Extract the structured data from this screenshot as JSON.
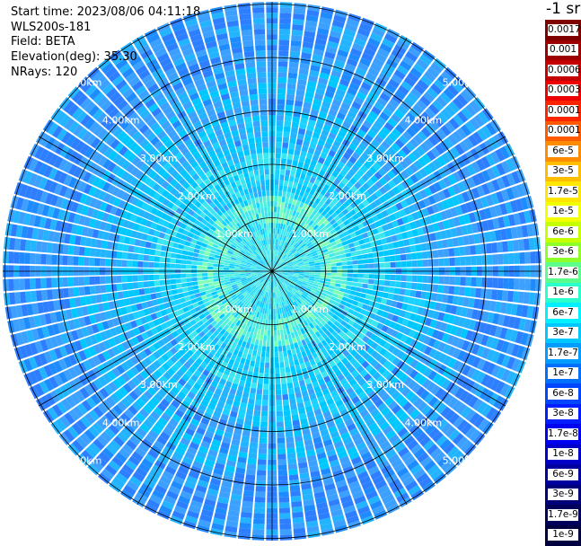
{
  "info": {
    "start_time": "Start time: 2023/08/06 04:11:18",
    "instrument": "WLS200s-181",
    "field": "Field: BETA",
    "elevation": "Elevation(deg): 35.30",
    "nrays": "NRays: 120"
  },
  "colorbar": {
    "unit": "-1 sr",
    "labels": [
      "0.0017",
      "0.001",
      "0.0006",
      "0.0003",
      "0.00017",
      "0.0001",
      "6e-5",
      "3e-5",
      "1.7e-5",
      "1e-5",
      "6e-6",
      "3e-6",
      "1.7e-6",
      "1e-6",
      "6e-7",
      "3e-7",
      "1.7e-7",
      "1e-7",
      "6e-8",
      "3e-8",
      "1.7e-8",
      "1e-8",
      "6e-9",
      "3e-9",
      "1.7e-9",
      "1e-9"
    ],
    "colors": [
      "#7f0000",
      "#9c0000",
      "#c40000",
      "#ee0000",
      "#ff2400",
      "#ff5a00",
      "#ff8c00",
      "#ffbd00",
      "#ffe600",
      "#f2ff00",
      "#c5ff00",
      "#8fff29",
      "#5dff8c",
      "#2bffcc",
      "#00f0ff",
      "#00c8ff",
      "#009cff",
      "#0070ff",
      "#0046ff",
      "#001eff",
      "#0000f0",
      "#0000c8",
      "#00009e",
      "#000078",
      "#00005a",
      "#000040"
    ]
  },
  "ppi": {
    "ring_labels": [
      "1.00km",
      "2.00km",
      "3.00km",
      "4.00km",
      "5.00km"
    ],
    "rays": 120,
    "palette": [
      "#1e8cff",
      "#2d7fff",
      "#3ca0ff",
      "#22b4ff",
      "#00c8ff",
      "#19d2ff",
      "#3be6ee",
      "#55f0d8",
      "#7cffb4"
    ]
  }
}
